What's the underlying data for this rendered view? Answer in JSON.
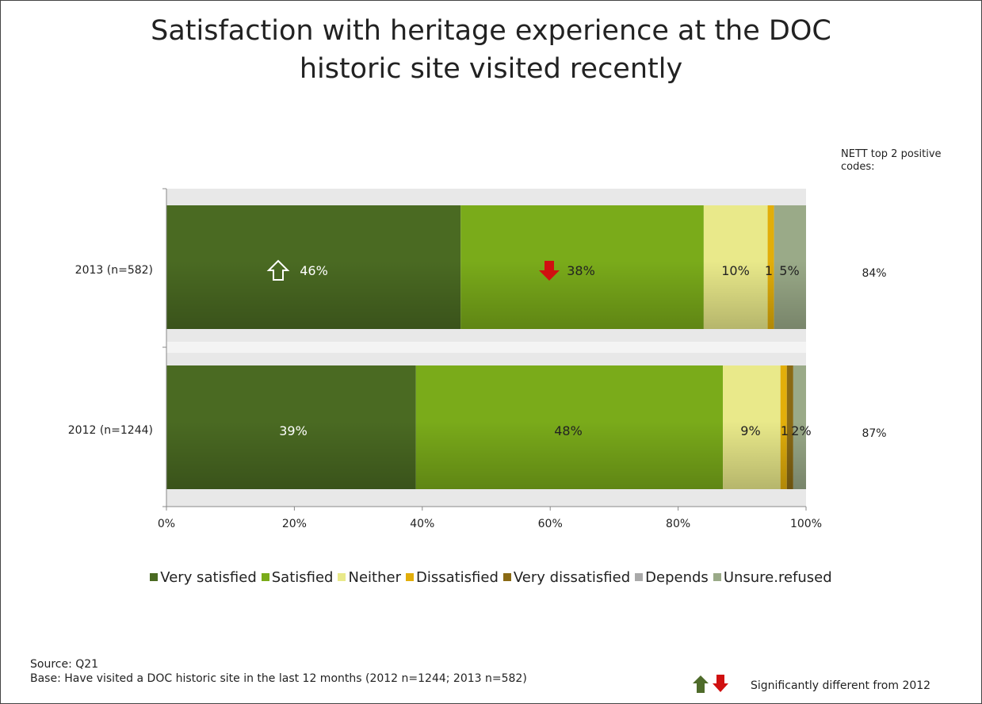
{
  "title": "Satisfaction with heritage experience at the DOC historic site visited recently",
  "nett_header": "NETT top 2 positive codes:",
  "chart_data": {
    "type": "bar",
    "orientation": "horizontal",
    "stacked": true,
    "categories": [
      "2013 (n=582)",
      "2012 (n=1244)"
    ],
    "series": [
      {
        "name": "Very satisfied",
        "color": "#4a6a22",
        "values": [
          46,
          39
        ],
        "labels": [
          "46%",
          "39%"
        ]
      },
      {
        "name": "Satisfied",
        "color": "#7aab1a",
        "values": [
          38,
          48
        ],
        "labels": [
          "38%",
          "48%"
        ]
      },
      {
        "name": "Neither",
        "color": "#e9e98a",
        "values": [
          10,
          9
        ],
        "labels": [
          "10%",
          "9%"
        ]
      },
      {
        "name": "Dissatisfied",
        "color": "#e2ae0a",
        "values": [
          1,
          1
        ],
        "labels": [
          "1",
          "1"
        ]
      },
      {
        "name": "Very dissatisfied",
        "color": "#8a6a14",
        "values": [
          0,
          1
        ],
        "labels": [
          "",
          ""
        ]
      },
      {
        "name": "Depends",
        "color": "#a9a9a9",
        "values": [
          0,
          0
        ],
        "labels": [
          "",
          ""
        ]
      },
      {
        "name": "Unsure.refused",
        "color": "#9aaa88",
        "values": [
          5,
          2
        ],
        "labels": [
          "5%",
          "2%"
        ]
      }
    ],
    "nett": [
      "84%",
      "87%"
    ],
    "xlim": [
      0,
      100
    ],
    "xticks": [
      "0%",
      "20%",
      "40%",
      "60%",
      "80%",
      "100%"
    ],
    "significance": [
      {
        "category": 0,
        "series": 0,
        "direction": "up"
      },
      {
        "category": 0,
        "series": 1,
        "direction": "down"
      }
    ],
    "legend_position": "bottom"
  },
  "source": "Source: Q21",
  "base": "Base: Have visited a DOC historic site in the last 12 months (2012 n=1244; 2013 n=582)",
  "significance_note": "Significantly different from 2012",
  "colors": {
    "up_arrow": "#4e6b2a",
    "down_arrow": "#d01010"
  }
}
